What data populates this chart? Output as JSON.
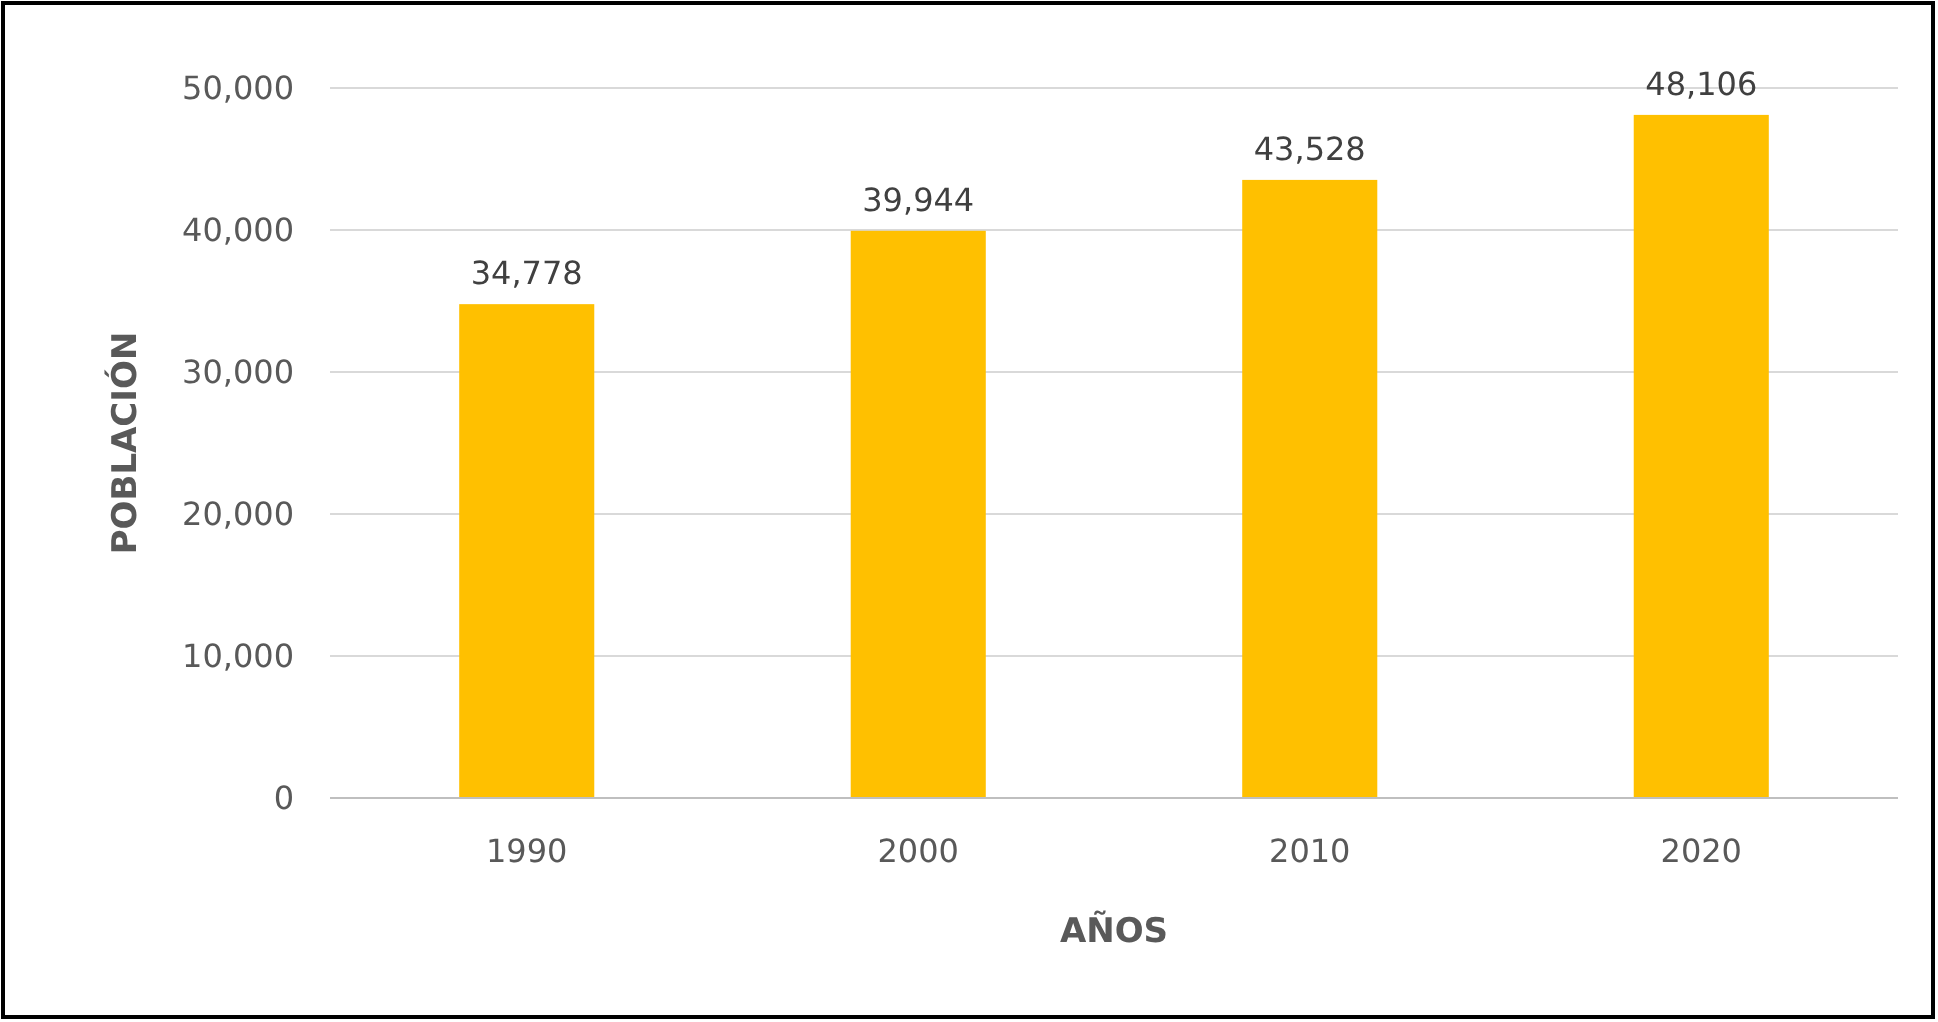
{
  "chart_data": {
    "type": "bar",
    "xlabel": "AÑOS",
    "ylabel": "POBLACIÓN",
    "categories": [
      "1990",
      "2000",
      "2010",
      "2020"
    ],
    "values": [
      34778,
      39944,
      43528,
      48106
    ],
    "value_labels": [
      "34,778",
      "39,944",
      "43,528",
      "48,106"
    ],
    "color": "#ffc000",
    "ylim": [
      0,
      50000
    ],
    "yticks": [
      0,
      {
        "value": 10000,
        "label": "10,000"
      },
      {
        "value": 20000,
        "label": "20,000"
      },
      {
        "value": 30000,
        "label": "30,000"
      },
      {
        "value": 40000,
        "label": "40,000"
      },
      {
        "value": 50000,
        "label": "50,000"
      }
    ],
    "grid": "y"
  }
}
